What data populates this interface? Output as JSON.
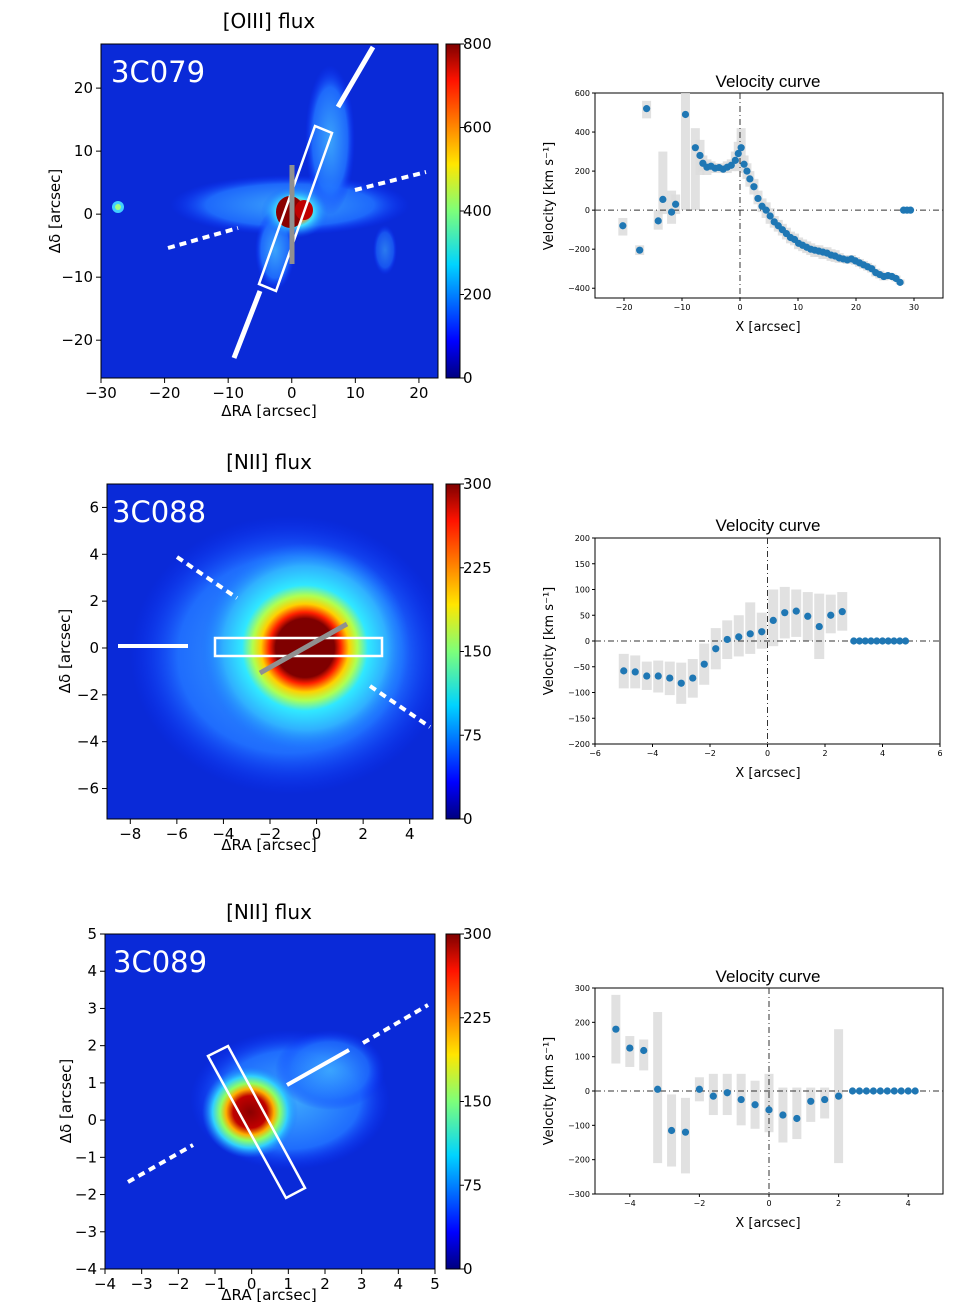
{
  "figure": {
    "panels": [
      {
        "id": "3C079",
        "map": {
          "title": "[OIII] flux",
          "source": "3C079",
          "xlabel": "ΔRA [arcsec]",
          "ylabel": "Δδ [arcsec]",
          "xrange": [
            -30,
            23
          ],
          "yrange": [
            -26,
            27
          ],
          "xticks": [
            -30,
            -20,
            -10,
            0,
            10,
            20
          ],
          "xtick_labels": [
            "−30",
            "−20",
            "−10",
            "0",
            "10",
            "20"
          ],
          "yticks": [
            -20,
            -10,
            0,
            10,
            20
          ],
          "ytick_labels": [
            "−20",
            "−10",
            "0",
            "10",
            "20"
          ],
          "colorbar": {
            "min": 0,
            "max": 800,
            "ticks": [
              0,
              200,
              400,
              600,
              800
            ],
            "tick_labels": [
              "0",
              "200",
              "400",
              "600",
              "800"
            ]
          }
        },
        "velocity": {
          "title": "Velocity curve",
          "xlabel": "X [arcsec]",
          "ylabel": "Velocity [km s⁻¹]",
          "xrange": [
            -25,
            35
          ],
          "yrange": [
            -450,
            600
          ],
          "xticks": [
            -20,
            -10,
            0,
            10,
            20,
            30
          ],
          "xtick_labels": [
            "−20",
            "−10",
            "0",
            "10",
            "20",
            "30"
          ],
          "yticks": [
            -400,
            -200,
            0,
            200,
            400,
            600
          ],
          "ytick_labels": [
            "−400",
            "−200",
            "0",
            "200",
            "400",
            "600"
          ]
        }
      },
      {
        "id": "3C088",
        "map": {
          "title": "[NII] flux",
          "source": "3C088",
          "xlabel": "ΔRA [arcsec]",
          "ylabel": "Δδ [arcsec]",
          "xrange": [
            -9,
            5
          ],
          "yrange": [
            -7.3,
            7
          ],
          "xticks": [
            -8,
            -6,
            -4,
            -2,
            0,
            2,
            4
          ],
          "xtick_labels": [
            "−8",
            "−6",
            "−4",
            "−2",
            "0",
            "2",
            "4"
          ],
          "yticks": [
            -6,
            -4,
            -2,
            0,
            2,
            4,
            6
          ],
          "ytick_labels": [
            "−6",
            "−4",
            "−2",
            "0",
            "2",
            "4",
            "6"
          ],
          "colorbar": {
            "min": 0,
            "max": 300,
            "ticks": [
              0,
              75,
              150,
              225,
              300
            ],
            "tick_labels": [
              "0",
              "75",
              "150",
              "225",
              "300"
            ]
          }
        },
        "velocity": {
          "title": "Velocity curve",
          "xlabel": "X [arcsec]",
          "ylabel": "Velocity [km s⁻¹]",
          "xrange": [
            -6,
            6
          ],
          "yrange": [
            -200,
            200
          ],
          "xticks": [
            -6,
            -4,
            -2,
            0,
            2,
            4,
            6
          ],
          "xtick_labels": [
            "−6",
            "−4",
            "−2",
            "0",
            "2",
            "4",
            "6"
          ],
          "yticks": [
            -200,
            -150,
            -100,
            -50,
            0,
            50,
            100,
            150,
            200
          ],
          "ytick_labels": [
            "−200",
            "−150",
            "−100",
            "−50",
            "0",
            "50",
            "100",
            "150",
            "200"
          ]
        }
      },
      {
        "id": "3C089",
        "map": {
          "title": "[NII] flux",
          "source": "3C089",
          "xlabel": "ΔRA [arcsec]",
          "ylabel": "Δδ [arcsec]",
          "xrange": [
            -4,
            5
          ],
          "yrange": [
            -4,
            5
          ],
          "xticks": [
            -4,
            -3,
            -2,
            -1,
            0,
            1,
            2,
            3,
            4,
            5
          ],
          "xtick_labels": [
            "−4",
            "−3",
            "−2",
            "−1",
            "0",
            "1",
            "2",
            "3",
            "4",
            "5"
          ],
          "yticks": [
            -4,
            -3,
            -2,
            -1,
            0,
            1,
            2,
            3,
            4,
            5
          ],
          "ytick_labels": [
            "−4",
            "−3",
            "−2",
            "−1",
            "0",
            "1",
            "2",
            "3",
            "4",
            "5"
          ],
          "colorbar": {
            "min": 0,
            "max": 300,
            "ticks": [
              0,
              75,
              150,
              225,
              300
            ],
            "tick_labels": [
              "0",
              "75",
              "150",
              "225",
              "300"
            ]
          }
        },
        "velocity": {
          "title": "Velocity curve",
          "xlabel": "X [arcsec]",
          "ylabel": "Velocity [km s⁻¹]",
          "xrange": [
            -5,
            5
          ],
          "yrange": [
            -300,
            300
          ],
          "xticks": [
            -4,
            -2,
            0,
            2,
            4
          ],
          "xtick_labels": [
            "−4",
            "−2",
            "0",
            "2",
            "4"
          ],
          "yticks": [
            -300,
            -200,
            -100,
            0,
            100,
            200,
            300
          ],
          "ytick_labels": [
            "−300",
            "−200",
            "−100",
            "0",
            "100",
            "200",
            "300"
          ]
        }
      }
    ]
  },
  "chart_data": [
    {
      "type": "heatmap",
      "title": "[OIII] flux",
      "source": "3C079",
      "xlabel": "ΔRA [arcsec]",
      "ylabel": "Δδ [arcsec]",
      "xlim": [
        -30,
        23
      ],
      "ylim": [
        -26,
        27
      ],
      "colorbar_range": [
        0,
        800
      ]
    },
    {
      "type": "scatter",
      "title": "Velocity curve",
      "source": "3C079",
      "xlabel": "X [arcsec]",
      "ylabel": "Velocity [km s⁻¹]",
      "xlim": [
        -25,
        35
      ],
      "ylim": [
        -450,
        600
      ],
      "x": [
        -20.2,
        -17.3,
        -16.1,
        -14.1,
        -13.3,
        -11.8,
        -11.1,
        -9.4,
        -7.7,
        -6.9,
        -6.4,
        -5.7,
        -5.0,
        -4.3,
        -3.6,
        -2.9,
        -2.2,
        -1.5,
        -0.8,
        -0.3,
        0.2,
        0.7,
        1.2,
        1.7,
        2.4,
        3.1,
        3.8,
        4.5,
        5.2,
        5.9,
        6.6,
        7.3,
        8.0,
        8.7,
        9.4,
        10.1,
        10.8,
        11.5,
        12.2,
        12.9,
        13.6,
        14.3,
        15.0,
        15.7,
        16.4,
        17.1,
        17.8,
        18.5,
        19.2,
        19.9,
        20.6,
        21.3,
        22.0,
        22.7,
        23.4,
        24.1,
        24.8,
        25.5,
        26.2,
        26.9,
        27.6,
        28.2,
        28.8,
        29.4
      ],
      "y": [
        -80,
        -205,
        520,
        -55,
        55,
        -10,
        30,
        490,
        320,
        280,
        240,
        220,
        225,
        215,
        218,
        210,
        220,
        230,
        255,
        290,
        320,
        235,
        200,
        160,
        120,
        60,
        20,
        0,
        -30,
        -60,
        -80,
        -100,
        -120,
        -140,
        -150,
        -170,
        -180,
        -190,
        -200,
        -205,
        -210,
        -215,
        -220,
        -230,
        -235,
        -245,
        -250,
        -255,
        -250,
        -260,
        -270,
        -280,
        -290,
        -300,
        -320,
        -330,
        -340,
        -335,
        -340,
        -350,
        -370,
        0,
        0,
        0
      ],
      "error_low": [
        -130,
        -230,
        470,
        -100,
        -20,
        -70,
        -20,
        0,
        0,
        180,
        200,
        180,
        200,
        190,
        200,
        190,
        190,
        200,
        200,
        200,
        220,
        190,
        160,
        120,
        80,
        30,
        -10,
        -40,
        -70,
        -90,
        -110,
        -130,
        -150,
        -170,
        -180,
        -200,
        -210,
        -220,
        -230,
        -240,
        -240,
        -250,
        -250,
        -260,
        -265,
        -270,
        -270,
        -275,
        -275,
        -280,
        -290,
        -300,
        -310,
        -320,
        -340,
        -350,
        -360,
        -350,
        -355,
        -365,
        -380,
        0,
        0,
        0
      ],
      "error_high": [
        -40,
        -180,
        560,
        0,
        300,
        100,
        80,
        600,
        420,
        360,
        280,
        260,
        250,
        240,
        240,
        230,
        250,
        260,
        300,
        350,
        420,
        280,
        240,
        200,
        160,
        100,
        60,
        40,
        10,
        -30,
        -50,
        -70,
        -90,
        -110,
        -120,
        -140,
        -150,
        -160,
        -170,
        -180,
        -180,
        -190,
        -190,
        -200,
        -205,
        -220,
        -230,
        -235,
        -230,
        -240,
        -250,
        -260,
        -270,
        -280,
        -300,
        -310,
        -320,
        -320,
        -325,
        -335,
        -355,
        0,
        0,
        0
      ]
    },
    {
      "type": "heatmap",
      "title": "[NII] flux",
      "source": "3C088",
      "xlabel": "ΔRA [arcsec]",
      "ylabel": "Δδ [arcsec]",
      "xlim": [
        -9,
        5
      ],
      "ylim": [
        -7.3,
        7
      ],
      "colorbar_range": [
        0,
        300
      ]
    },
    {
      "type": "scatter",
      "title": "Velocity curve",
      "source": "3C088",
      "xlabel": "X [arcsec]",
      "ylabel": "Velocity [km s⁻¹]",
      "xlim": [
        -6,
        6
      ],
      "ylim": [
        -200,
        200
      ],
      "x": [
        -5.0,
        -4.6,
        -4.2,
        -3.8,
        -3.4,
        -3.0,
        -2.6,
        -2.2,
        -1.8,
        -1.4,
        -1.0,
        -0.6,
        -0.2,
        0.2,
        0.6,
        1.0,
        1.4,
        1.8,
        2.2,
        2.6,
        3.0,
        3.2,
        3.4,
        3.6,
        3.8,
        4.0,
        4.2,
        4.4,
        4.6,
        4.8
      ],
      "y": [
        -58,
        -60,
        -68,
        -68,
        -72,
        -82,
        -72,
        -45,
        -15,
        3,
        8,
        14,
        18,
        40,
        55,
        58,
        48,
        28,
        50,
        57,
        0,
        0,
        0,
        0,
        0,
        0,
        0,
        0,
        0,
        0
      ],
      "error_low": [
        -92,
        -92,
        -95,
        -100,
        -105,
        -122,
        -110,
        -85,
        -55,
        -35,
        -30,
        -25,
        -15,
        -10,
        5,
        8,
        0,
        -35,
        15,
        20,
        0,
        0,
        0,
        0,
        0,
        0,
        0,
        0,
        0,
        0
      ],
      "error_high": [
        -25,
        -28,
        -40,
        -38,
        -40,
        -42,
        -35,
        -5,
        25,
        40,
        50,
        75,
        55,
        100,
        105,
        100,
        95,
        92,
        90,
        95,
        0,
        0,
        0,
        0,
        0,
        0,
        0,
        0,
        0,
        0
      ]
    },
    {
      "type": "heatmap",
      "title": "[NII] flux",
      "source": "3C089",
      "xlabel": "ΔRA [arcsec]",
      "ylabel": "Δδ [arcsec]",
      "xlim": [
        -4,
        5
      ],
      "ylim": [
        -4,
        5
      ],
      "colorbar_range": [
        0,
        300
      ]
    },
    {
      "type": "scatter",
      "title": "Velocity curve",
      "source": "3C089",
      "xlabel": "X [arcsec]",
      "ylabel": "Velocity [km s⁻¹]",
      "xlim": [
        -5,
        5
      ],
      "ylim": [
        -300,
        300
      ],
      "x": [
        -4.4,
        -4.0,
        -3.6,
        -3.2,
        -2.8,
        -2.4,
        -2.0,
        -1.6,
        -1.2,
        -0.8,
        -0.4,
        0.0,
        0.4,
        0.8,
        1.2,
        1.6,
        2.0,
        2.4,
        2.6,
        2.8,
        3.0,
        3.2,
        3.4,
        3.6,
        3.8,
        4.0,
        4.2
      ],
      "y": [
        180,
        125,
        118,
        5,
        -115,
        -120,
        5,
        -15,
        -5,
        -25,
        -40,
        -55,
        -70,
        -80,
        -30,
        -25,
        -15,
        0,
        0,
        0,
        0,
        0,
        0,
        0,
        0,
        0,
        0
      ],
      "error_low": [
        80,
        70,
        60,
        -210,
        -220,
        -240,
        -30,
        -70,
        -70,
        -100,
        -110,
        -120,
        -150,
        -140,
        -90,
        -80,
        -210,
        0,
        0,
        0,
        0,
        0,
        0,
        0,
        0,
        0,
        0
      ],
      "error_high": [
        280,
        160,
        150,
        230,
        -10,
        -20,
        40,
        50,
        50,
        50,
        30,
        50,
        10,
        10,
        10,
        10,
        180,
        0,
        0,
        0,
        0,
        0,
        0,
        0,
        0,
        0,
        0
      ]
    }
  ]
}
